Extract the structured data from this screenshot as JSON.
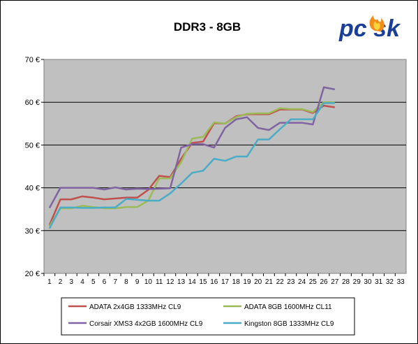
{
  "chart_data": {
    "type": "line",
    "title": "DDR3 - 8GB",
    "xlabel": "",
    "ylabel": "",
    "x": [
      1,
      2,
      3,
      4,
      5,
      6,
      7,
      8,
      9,
      10,
      11,
      12,
      13,
      14,
      15,
      16,
      17,
      18,
      19,
      20,
      21,
      22,
      23,
      24,
      25,
      26,
      27
    ],
    "x_ticks": [
      "1",
      "2",
      "3",
      "4",
      "5",
      "6",
      "7",
      "8",
      "9",
      "10",
      "11",
      "12",
      "13",
      "14",
      "15",
      "16",
      "17",
      "18",
      "19",
      "20",
      "21",
      "22",
      "23",
      "24",
      "25",
      "26",
      "27",
      "28",
      "29",
      "30",
      "31",
      "32",
      "33"
    ],
    "xlim": [
      1,
      33
    ],
    "ylim": [
      20,
      70
    ],
    "y_ticks": [
      "20 €",
      "30 €",
      "40 €",
      "50 €",
      "60 €",
      "70 €"
    ],
    "grid": "horizontal",
    "legend_position": "bottom",
    "series": [
      {
        "name": "ADATA 2x4GB 1333MHz CL9",
        "color": "#c0504d",
        "values": [
          31.3,
          37.3,
          37.3,
          38.0,
          37.7,
          37.3,
          37.5,
          37.7,
          37.7,
          39.5,
          42.8,
          42.5,
          46.8,
          50.5,
          50.8,
          55.1,
          55.0,
          56.7,
          57.2,
          57.2,
          57.2,
          58.3,
          58.3,
          58.3,
          57.5,
          59.2,
          58.8
        ]
      },
      {
        "name": "ADATA 8GB 1600MHz CL11",
        "color": "#9bbb59",
        "values": [
          31.0,
          35.2,
          35.2,
          35.8,
          35.5,
          35.2,
          35.2,
          35.5,
          35.5,
          37.0,
          42.2,
          42.2,
          46.0,
          51.5,
          51.9,
          55.3,
          55.0,
          56.5,
          57.3,
          57.4,
          57.4,
          58.6,
          58.4,
          58.4,
          57.7,
          60.0,
          60.0
        ]
      },
      {
        "name": "Corsair XMS3 4x2GB 1600MHz CL9",
        "color": "#8064a2",
        "values": [
          35.3,
          40.0,
          40.0,
          40.0,
          40.0,
          39.6,
          40.1,
          39.6,
          39.8,
          39.7,
          39.8,
          39.9,
          49.4,
          50.2,
          50.2,
          49.4,
          54.0,
          56.0,
          56.5,
          54.0,
          53.5,
          55.2,
          55.2,
          55.2,
          54.8,
          63.5,
          63.0
        ]
      },
      {
        "name": "Kingston 8GB 1333MHz CL9",
        "color": "#4bacc6",
        "values": [
          30.5,
          35.4,
          35.4,
          35.3,
          35.3,
          35.4,
          35.4,
          37.4,
          37.2,
          37.0,
          37.0,
          38.7,
          41.0,
          43.5,
          44.0,
          46.8,
          46.3,
          47.3,
          47.3,
          51.3,
          51.3,
          53.7,
          56.0,
          56.0,
          56.0,
          59.8,
          59.8
        ]
      }
    ]
  },
  "logo": {
    "text": "pc sk",
    "icon": "flame-icon"
  },
  "colors": {
    "plot_bg": "#c0c0c0",
    "frame_border": "#000000"
  }
}
